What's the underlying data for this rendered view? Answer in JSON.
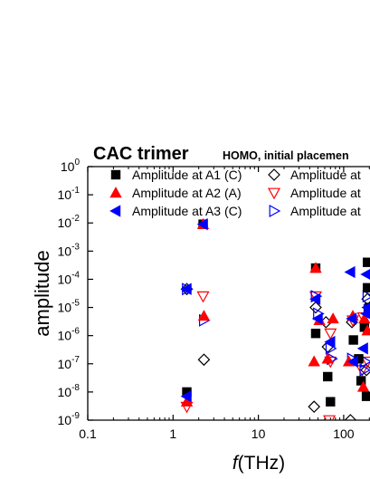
{
  "chart_data": {
    "type": "scatter",
    "title": "CAC trimer",
    "subtitle": "HOMO, initial placemen",
    "xlabel": "f (THz)",
    "xlabel_italic_part": "f",
    "xlabel_unit_part": "(THz)",
    "ylabel": "amplitude",
    "xscale": "log",
    "yscale": "log",
    "xlim": [
      0.1,
      200
    ],
    "ylim": [
      1e-09,
      1
    ],
    "x_ticks": [
      {
        "value": 0.1,
        "label": "0.1"
      },
      {
        "value": 1,
        "label": "1"
      },
      {
        "value": 10,
        "label": "10"
      },
      {
        "value": 100,
        "label": "100"
      }
    ],
    "y_ticks": [
      {
        "value": 1,
        "base": "10",
        "exp": "0"
      },
      {
        "value": 0.1,
        "base": "10",
        "exp": "-1"
      },
      {
        "value": 0.01,
        "base": "10",
        "exp": "-2"
      },
      {
        "value": 0.001,
        "base": "10",
        "exp": "-3"
      },
      {
        "value": 0.0001,
        "base": "10",
        "exp": "-4"
      },
      {
        "value": 1e-05,
        "base": "10",
        "exp": "-5"
      },
      {
        "value": 1e-06,
        "base": "10",
        "exp": "-6"
      },
      {
        "value": 1e-07,
        "base": "10",
        "exp": "-7"
      },
      {
        "value": 1e-08,
        "base": "10",
        "exp": "-8"
      },
      {
        "value": 1e-09,
        "base": "10",
        "exp": "-9"
      }
    ],
    "legend_position": "top",
    "series": [
      {
        "name": "Amplitude at A1 (C)",
        "marker": "square-filled",
        "color": "#000000",
        "points": [
          [
            1.45,
            1e-08
          ],
          [
            2.25,
            0.009
          ],
          [
            47,
            0.00025
          ],
          [
            70,
            4.5e-09
          ],
          [
            65,
            3.5e-08
          ],
          [
            47,
            1.2e-06
          ],
          [
            130,
            7e-07
          ],
          [
            160,
            2.5e-08
          ],
          [
            190,
            0.0004
          ],
          [
            190,
            5e-05
          ],
          [
            175,
            2e-06
          ],
          [
            150,
            1.5e-07
          ],
          [
            185,
            7e-09
          ],
          [
            200,
            1e-05
          ]
        ]
      },
      {
        "name": "Amplitude at A2 (A)",
        "marker": "triangle-up-filled",
        "color": "#ff0000",
        "points": [
          [
            1.45,
            4.5e-09
          ],
          [
            2.25,
            0.009
          ],
          [
            2.3,
            5e-06
          ],
          [
            47,
            0.00025
          ],
          [
            45,
            1.2e-07
          ],
          [
            52,
            3.5e-06
          ],
          [
            75,
            4e-06
          ],
          [
            65,
            1.5e-07
          ],
          [
            128,
            5e-06
          ],
          [
            115,
            1.2e-07
          ],
          [
            175,
            4e-06
          ],
          [
            190,
            1.5e-06
          ],
          [
            170,
            1.5e-08
          ]
        ]
      },
      {
        "name": "Amplitude at A3 (C)",
        "marker": "triangle-left-filled",
        "color": "#0000ff",
        "points": [
          [
            1.45,
            7e-09
          ],
          [
            1.45,
            4.5e-05
          ],
          [
            2.25,
            0.009
          ],
          [
            47,
            2e-05
          ],
          [
            50,
            4e-06
          ],
          [
            70,
            6e-07
          ],
          [
            120,
            0.00018
          ],
          [
            125,
            4e-06
          ],
          [
            130,
            1.2e-07
          ],
          [
            170,
            3.5e-07
          ],
          [
            185,
            0.00015
          ],
          [
            190,
            1e-05
          ],
          [
            185,
            6e-06
          ]
        ]
      },
      {
        "name": "Amplitude at",
        "marker": "diamond-open",
        "color": "#000000",
        "points": [
          [
            1.45,
            4.5e-05
          ],
          [
            2.3,
            1.4e-07
          ],
          [
            45,
            3e-09
          ],
          [
            47,
            1e-05
          ],
          [
            62,
            3e-06
          ],
          [
            65,
            4e-07
          ],
          [
            120,
            1e-09
          ],
          [
            125,
            3e-06
          ],
          [
            185,
            6e-08
          ],
          [
            190,
            2e-05
          ]
        ]
      },
      {
        "name": "Amplitude at",
        "marker": "triangle-down-open",
        "color": "#ff0000",
        "points": [
          [
            1.45,
            3e-09
          ],
          [
            2.25,
            2.5e-05
          ],
          [
            47,
            2.5e-05
          ],
          [
            68,
            1e-09
          ],
          [
            70,
            1.2e-06
          ],
          [
            70,
            1.2e-07
          ],
          [
            128,
            3.5e-06
          ],
          [
            170,
            4.5e-06
          ],
          [
            190,
            1.2e-07
          ],
          [
            165,
            6e-08
          ]
        ]
      },
      {
        "name": "Amplitude at",
        "marker": "triangle-right-open",
        "color": "#0000ff",
        "points": [
          [
            1.45,
            4.5e-05
          ],
          [
            2.3,
            3.5e-06
          ],
          [
            47,
            2.5e-05
          ],
          [
            50,
            6e-06
          ],
          [
            70,
            3.5e-07
          ],
          [
            72,
            1.5e-07
          ],
          [
            125,
            1.5e-07
          ],
          [
            175,
            6e-08
          ],
          [
            180,
            1.2e-07
          ],
          [
            190,
            2.5e-05
          ],
          [
            195,
            8e-06
          ]
        ]
      }
    ]
  }
}
